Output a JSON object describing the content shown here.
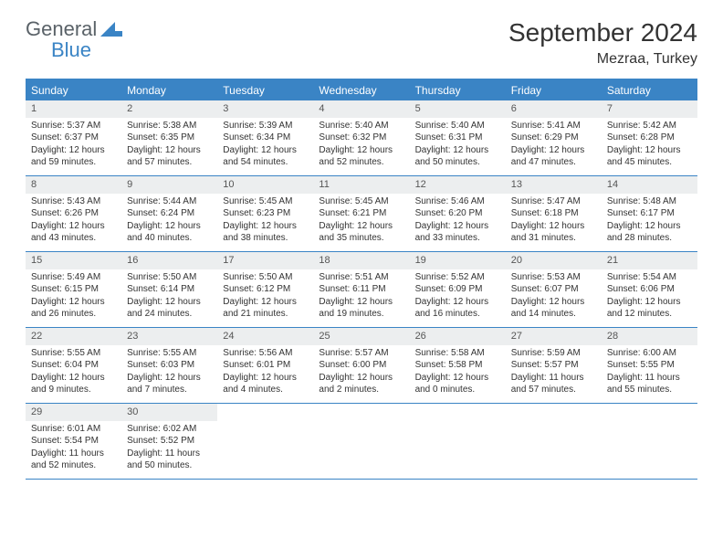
{
  "logo": {
    "general": "General",
    "blue": "Blue"
  },
  "title": "September 2024",
  "location": "Mezraa, Turkey",
  "colors": {
    "accent": "#3a84c5",
    "header_bg": "#3a84c5",
    "header_text": "#ffffff",
    "daynum_bg": "#eceeef",
    "body_text": "#333333",
    "logo_gray": "#5a6268",
    "logo_blue": "#3a84c5"
  },
  "day_headers": [
    "Sunday",
    "Monday",
    "Tuesday",
    "Wednesday",
    "Thursday",
    "Friday",
    "Saturday"
  ],
  "weeks": [
    [
      {
        "n": "1",
        "sunrise": "Sunrise: 5:37 AM",
        "sunset": "Sunset: 6:37 PM",
        "day": "Daylight: 12 hours and 59 minutes."
      },
      {
        "n": "2",
        "sunrise": "Sunrise: 5:38 AM",
        "sunset": "Sunset: 6:35 PM",
        "day": "Daylight: 12 hours and 57 minutes."
      },
      {
        "n": "3",
        "sunrise": "Sunrise: 5:39 AM",
        "sunset": "Sunset: 6:34 PM",
        "day": "Daylight: 12 hours and 54 minutes."
      },
      {
        "n": "4",
        "sunrise": "Sunrise: 5:40 AM",
        "sunset": "Sunset: 6:32 PM",
        "day": "Daylight: 12 hours and 52 minutes."
      },
      {
        "n": "5",
        "sunrise": "Sunrise: 5:40 AM",
        "sunset": "Sunset: 6:31 PM",
        "day": "Daylight: 12 hours and 50 minutes."
      },
      {
        "n": "6",
        "sunrise": "Sunrise: 5:41 AM",
        "sunset": "Sunset: 6:29 PM",
        "day": "Daylight: 12 hours and 47 minutes."
      },
      {
        "n": "7",
        "sunrise": "Sunrise: 5:42 AM",
        "sunset": "Sunset: 6:28 PM",
        "day": "Daylight: 12 hours and 45 minutes."
      }
    ],
    [
      {
        "n": "8",
        "sunrise": "Sunrise: 5:43 AM",
        "sunset": "Sunset: 6:26 PM",
        "day": "Daylight: 12 hours and 43 minutes."
      },
      {
        "n": "9",
        "sunrise": "Sunrise: 5:44 AM",
        "sunset": "Sunset: 6:24 PM",
        "day": "Daylight: 12 hours and 40 minutes."
      },
      {
        "n": "10",
        "sunrise": "Sunrise: 5:45 AM",
        "sunset": "Sunset: 6:23 PM",
        "day": "Daylight: 12 hours and 38 minutes."
      },
      {
        "n": "11",
        "sunrise": "Sunrise: 5:45 AM",
        "sunset": "Sunset: 6:21 PM",
        "day": "Daylight: 12 hours and 35 minutes."
      },
      {
        "n": "12",
        "sunrise": "Sunrise: 5:46 AM",
        "sunset": "Sunset: 6:20 PM",
        "day": "Daylight: 12 hours and 33 minutes."
      },
      {
        "n": "13",
        "sunrise": "Sunrise: 5:47 AM",
        "sunset": "Sunset: 6:18 PM",
        "day": "Daylight: 12 hours and 31 minutes."
      },
      {
        "n": "14",
        "sunrise": "Sunrise: 5:48 AM",
        "sunset": "Sunset: 6:17 PM",
        "day": "Daylight: 12 hours and 28 minutes."
      }
    ],
    [
      {
        "n": "15",
        "sunrise": "Sunrise: 5:49 AM",
        "sunset": "Sunset: 6:15 PM",
        "day": "Daylight: 12 hours and 26 minutes."
      },
      {
        "n": "16",
        "sunrise": "Sunrise: 5:50 AM",
        "sunset": "Sunset: 6:14 PM",
        "day": "Daylight: 12 hours and 24 minutes."
      },
      {
        "n": "17",
        "sunrise": "Sunrise: 5:50 AM",
        "sunset": "Sunset: 6:12 PM",
        "day": "Daylight: 12 hours and 21 minutes."
      },
      {
        "n": "18",
        "sunrise": "Sunrise: 5:51 AM",
        "sunset": "Sunset: 6:11 PM",
        "day": "Daylight: 12 hours and 19 minutes."
      },
      {
        "n": "19",
        "sunrise": "Sunrise: 5:52 AM",
        "sunset": "Sunset: 6:09 PM",
        "day": "Daylight: 12 hours and 16 minutes."
      },
      {
        "n": "20",
        "sunrise": "Sunrise: 5:53 AM",
        "sunset": "Sunset: 6:07 PM",
        "day": "Daylight: 12 hours and 14 minutes."
      },
      {
        "n": "21",
        "sunrise": "Sunrise: 5:54 AM",
        "sunset": "Sunset: 6:06 PM",
        "day": "Daylight: 12 hours and 12 minutes."
      }
    ],
    [
      {
        "n": "22",
        "sunrise": "Sunrise: 5:55 AM",
        "sunset": "Sunset: 6:04 PM",
        "day": "Daylight: 12 hours and 9 minutes."
      },
      {
        "n": "23",
        "sunrise": "Sunrise: 5:55 AM",
        "sunset": "Sunset: 6:03 PM",
        "day": "Daylight: 12 hours and 7 minutes."
      },
      {
        "n": "24",
        "sunrise": "Sunrise: 5:56 AM",
        "sunset": "Sunset: 6:01 PM",
        "day": "Daylight: 12 hours and 4 minutes."
      },
      {
        "n": "25",
        "sunrise": "Sunrise: 5:57 AM",
        "sunset": "Sunset: 6:00 PM",
        "day": "Daylight: 12 hours and 2 minutes."
      },
      {
        "n": "26",
        "sunrise": "Sunrise: 5:58 AM",
        "sunset": "Sunset: 5:58 PM",
        "day": "Daylight: 12 hours and 0 minutes."
      },
      {
        "n": "27",
        "sunrise": "Sunrise: 5:59 AM",
        "sunset": "Sunset: 5:57 PM",
        "day": "Daylight: 11 hours and 57 minutes."
      },
      {
        "n": "28",
        "sunrise": "Sunrise: 6:00 AM",
        "sunset": "Sunset: 5:55 PM",
        "day": "Daylight: 11 hours and 55 minutes."
      }
    ],
    [
      {
        "n": "29",
        "sunrise": "Sunrise: 6:01 AM",
        "sunset": "Sunset: 5:54 PM",
        "day": "Daylight: 11 hours and 52 minutes."
      },
      {
        "n": "30",
        "sunrise": "Sunrise: 6:02 AM",
        "sunset": "Sunset: 5:52 PM",
        "day": "Daylight: 11 hours and 50 minutes."
      },
      null,
      null,
      null,
      null,
      null
    ]
  ]
}
